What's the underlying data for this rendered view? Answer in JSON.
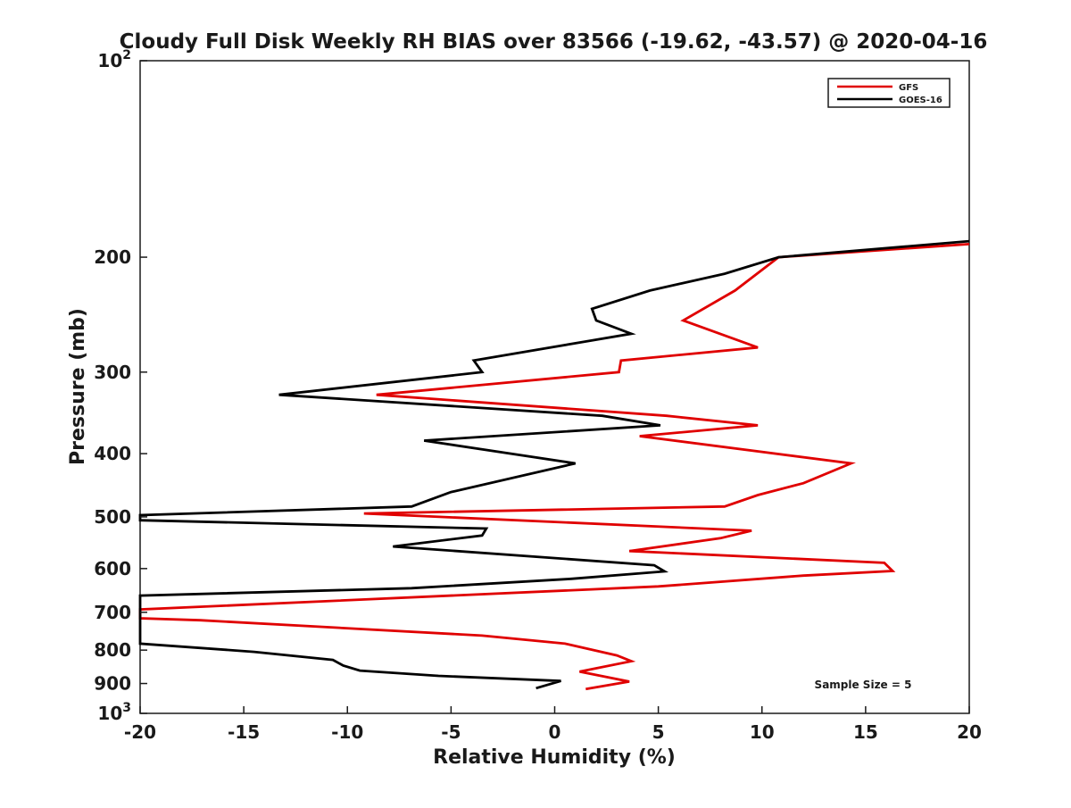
{
  "chart_data": {
    "type": "line",
    "title": "Cloudy Full Disk Weekly RH BIAS over 83566 (-19.62, -43.57) @ 2020-04-16",
    "xlabel": "Relative Humidity (%)",
    "ylabel": "Pressure (mb)",
    "xlim": [
      -20,
      20
    ],
    "ylim": [
      100,
      1000
    ],
    "y_scale": "log",
    "y_reversed": true,
    "x_ticks": [
      "-20",
      "-15",
      "-10",
      "-5",
      "0",
      "5",
      "10",
      "15",
      "20"
    ],
    "y_ticks": [
      {
        "value": 100,
        "base": "10",
        "exp": "2"
      },
      {
        "value": 200,
        "label": "200"
      },
      {
        "value": 300,
        "label": "300"
      },
      {
        "value": 400,
        "label": "400"
      },
      {
        "value": 500,
        "label": "500"
      },
      {
        "value": 600,
        "label": "600"
      },
      {
        "value": 700,
        "label": "700"
      },
      {
        "value": 800,
        "label": "800"
      },
      {
        "value": 900,
        "label": "900"
      },
      {
        "value": 1000,
        "base": "10",
        "exp": "3"
      }
    ],
    "legend_position": "top-right",
    "annotation": "Sample Size = 5",
    "series": [
      {
        "name": "GFS",
        "color": "#e00000",
        "points": [
          [
            20.0,
            191
          ],
          [
            10.8,
            200
          ],
          [
            8.7,
            225
          ],
          [
            6.2,
            250
          ],
          [
            9.8,
            275
          ],
          [
            3.2,
            288
          ],
          [
            3.1,
            300
          ],
          [
            -8.6,
            325
          ],
          [
            5.4,
            350
          ],
          [
            9.8,
            362
          ],
          [
            4.1,
            376
          ],
          [
            14.3,
            414
          ],
          [
            12.0,
            444
          ],
          [
            9.8,
            463
          ],
          [
            8.2,
            482
          ],
          [
            -9.2,
            494
          ],
          [
            9.5,
            525
          ],
          [
            8.0,
            539
          ],
          [
            3.6,
            564
          ],
          [
            15.9,
            588
          ],
          [
            16.3,
            605
          ],
          [
            12.0,
            615
          ],
          [
            5.0,
            639
          ],
          [
            -20.0,
            693
          ],
          [
            -20.0,
            715
          ],
          [
            -17.1,
            720
          ],
          [
            -3.5,
            760
          ],
          [
            0.5,
            782
          ],
          [
            3.0,
            815
          ],
          [
            3.7,
            832
          ],
          [
            1.2,
            863
          ],
          [
            3.6,
            894
          ],
          [
            1.5,
            918
          ]
        ]
      },
      {
        "name": "GOES-16",
        "color": "#000000",
        "points": [
          [
            20.0,
            189
          ],
          [
            10.8,
            200
          ],
          [
            8.2,
            212
          ],
          [
            4.6,
            225
          ],
          [
            1.8,
            240
          ],
          [
            2.0,
            250
          ],
          [
            3.7,
            262
          ],
          [
            -3.9,
            288
          ],
          [
            -3.5,
            300
          ],
          [
            -13.3,
            325
          ],
          [
            2.3,
            350
          ],
          [
            5.1,
            362
          ],
          [
            -6.3,
            382
          ],
          [
            1.0,
            414
          ],
          [
            -5.0,
            458
          ],
          [
            -6.9,
            482
          ],
          [
            -20.0,
            497
          ],
          [
            -20.0,
            506
          ],
          [
            -3.3,
            521
          ],
          [
            -3.5,
            534
          ],
          [
            -7.8,
            555
          ],
          [
            4.8,
            593
          ],
          [
            5.3,
            606
          ],
          [
            0.8,
            622
          ],
          [
            -6.9,
            643
          ],
          [
            -20.0,
            660
          ],
          [
            -20.0,
            782
          ],
          [
            -14.5,
            805
          ],
          [
            -10.7,
            828
          ],
          [
            -10.2,
            845
          ],
          [
            -9.4,
            860
          ],
          [
            -5.6,
            876
          ],
          [
            0.3,
            892
          ],
          [
            -0.9,
            915
          ]
        ]
      }
    ]
  }
}
